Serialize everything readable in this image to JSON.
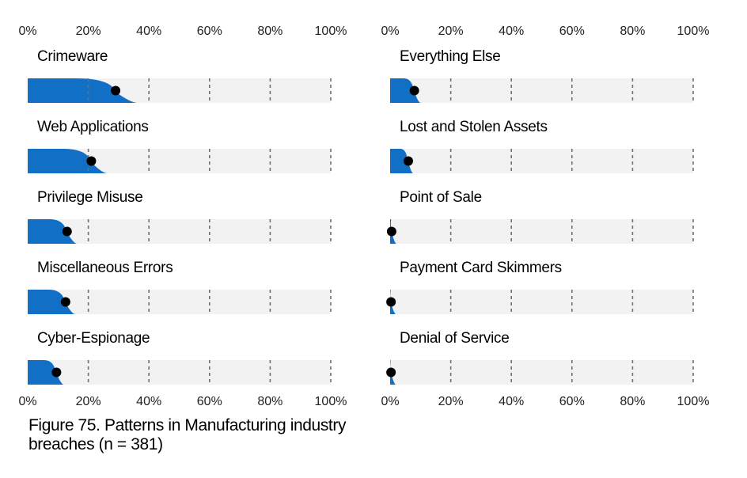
{
  "chart_data": {
    "type": "bar",
    "caption": "Figure 75. Patterns in Manufacturing industry breaches (n = 381)",
    "x_ticks": [
      "0%",
      "20%",
      "40%",
      "60%",
      "80%",
      "100%"
    ],
    "xlim": [
      0,
      100
    ],
    "colors": {
      "fill": "#1170c5",
      "track": "#f2f2f2",
      "point": "#000000",
      "grid": "#707070"
    },
    "panels": [
      {
        "categories": [
          "Crimeware",
          "Web Applications",
          "Privilege Misuse",
          "Miscellaneous Errors",
          "Cyber-Espionage"
        ],
        "values": [
          29,
          21,
          13,
          12.5,
          9.5
        ]
      },
      {
        "categories": [
          "Everything Else",
          "Lost and Stolen Assets",
          "Point of Sale",
          "Payment Card Skimmers",
          "Denial of Service"
        ],
        "values": [
          8,
          6,
          0.5,
          0.3,
          0.3
        ]
      }
    ]
  }
}
